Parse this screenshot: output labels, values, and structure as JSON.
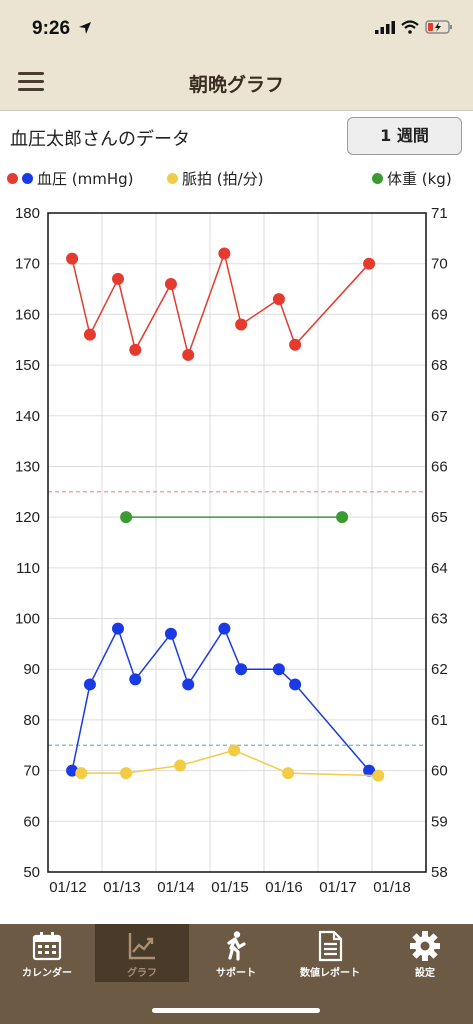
{
  "status": {
    "time": "9:26"
  },
  "header": {
    "title": "朝晩グラフ"
  },
  "data_header": {
    "owner": "血圧太郎さんのデータ",
    "period_button": "1 週間"
  },
  "legend": {
    "bp_label": "血圧 (mmHg)",
    "pulse_label": "脈拍 (拍/分)",
    "weight_label": "体重 (kg)"
  },
  "colors": {
    "systolic": "#e53b2e",
    "diastolic": "#1a3ae6",
    "pulse": "#f3cc45",
    "weight": "#3c9a35",
    "header_bg": "#ece4d2",
    "tabbar_bg": "#6d5a45"
  },
  "chart_data": {
    "type": "line",
    "x_tick_labels": [
      "01/12",
      "01/13",
      "01/14",
      "01/15",
      "01/16",
      "01/17",
      "01/18"
    ],
    "x_range": [
      0,
      6.5
    ],
    "y_left_range": [
      50,
      180
    ],
    "y_left_ticks": [
      50,
      60,
      70,
      80,
      90,
      100,
      110,
      120,
      130,
      140,
      150,
      160,
      170,
      180
    ],
    "y_right_range": [
      58,
      71
    ],
    "y_right_ticks": [
      58,
      59,
      60,
      61,
      62,
      63,
      64,
      65,
      66,
      67,
      68,
      69,
      70,
      71
    ],
    "grid": true,
    "reference_lines": [
      {
        "series": "systolic",
        "value": 125
      },
      {
        "series": "diastolic",
        "value": 75
      }
    ],
    "series": [
      {
        "key": "systolic",
        "axis": "left",
        "x": [
          0.15,
          0.48,
          1.0,
          1.32,
          1.98,
          2.3,
          2.97,
          3.28,
          3.98,
          4.28,
          5.65
        ],
        "values": [
          171,
          156,
          167,
          153,
          166,
          152,
          172,
          158,
          163,
          154,
          170
        ]
      },
      {
        "key": "diastolic",
        "axis": "left",
        "x": [
          0.15,
          0.48,
          1.0,
          1.32,
          1.98,
          2.3,
          2.97,
          3.28,
          3.98,
          4.28,
          5.65
        ],
        "values": [
          70,
          87,
          98,
          88,
          97,
          87,
          98,
          90,
          90,
          87,
          70
        ]
      },
      {
        "key": "pulse",
        "axis": "left",
        "x": [
          0.32,
          1.15,
          2.15,
          3.15,
          4.15,
          5.82
        ],
        "values": [
          69.5,
          69.5,
          71,
          74,
          69.5,
          69
        ]
      },
      {
        "key": "weight",
        "axis": "right",
        "x": [
          1.15,
          5.15
        ],
        "values": [
          65,
          65
        ]
      }
    ]
  },
  "tabs": [
    {
      "label": "カレンダー",
      "icon": "calendar-icon"
    },
    {
      "label": "グラフ",
      "icon": "chart-icon",
      "active": true
    },
    {
      "label": "サポート",
      "icon": "walking-person-icon"
    },
    {
      "label": "数値レポート",
      "icon": "report-icon"
    },
    {
      "label": "設定",
      "icon": "gear-icon"
    }
  ]
}
